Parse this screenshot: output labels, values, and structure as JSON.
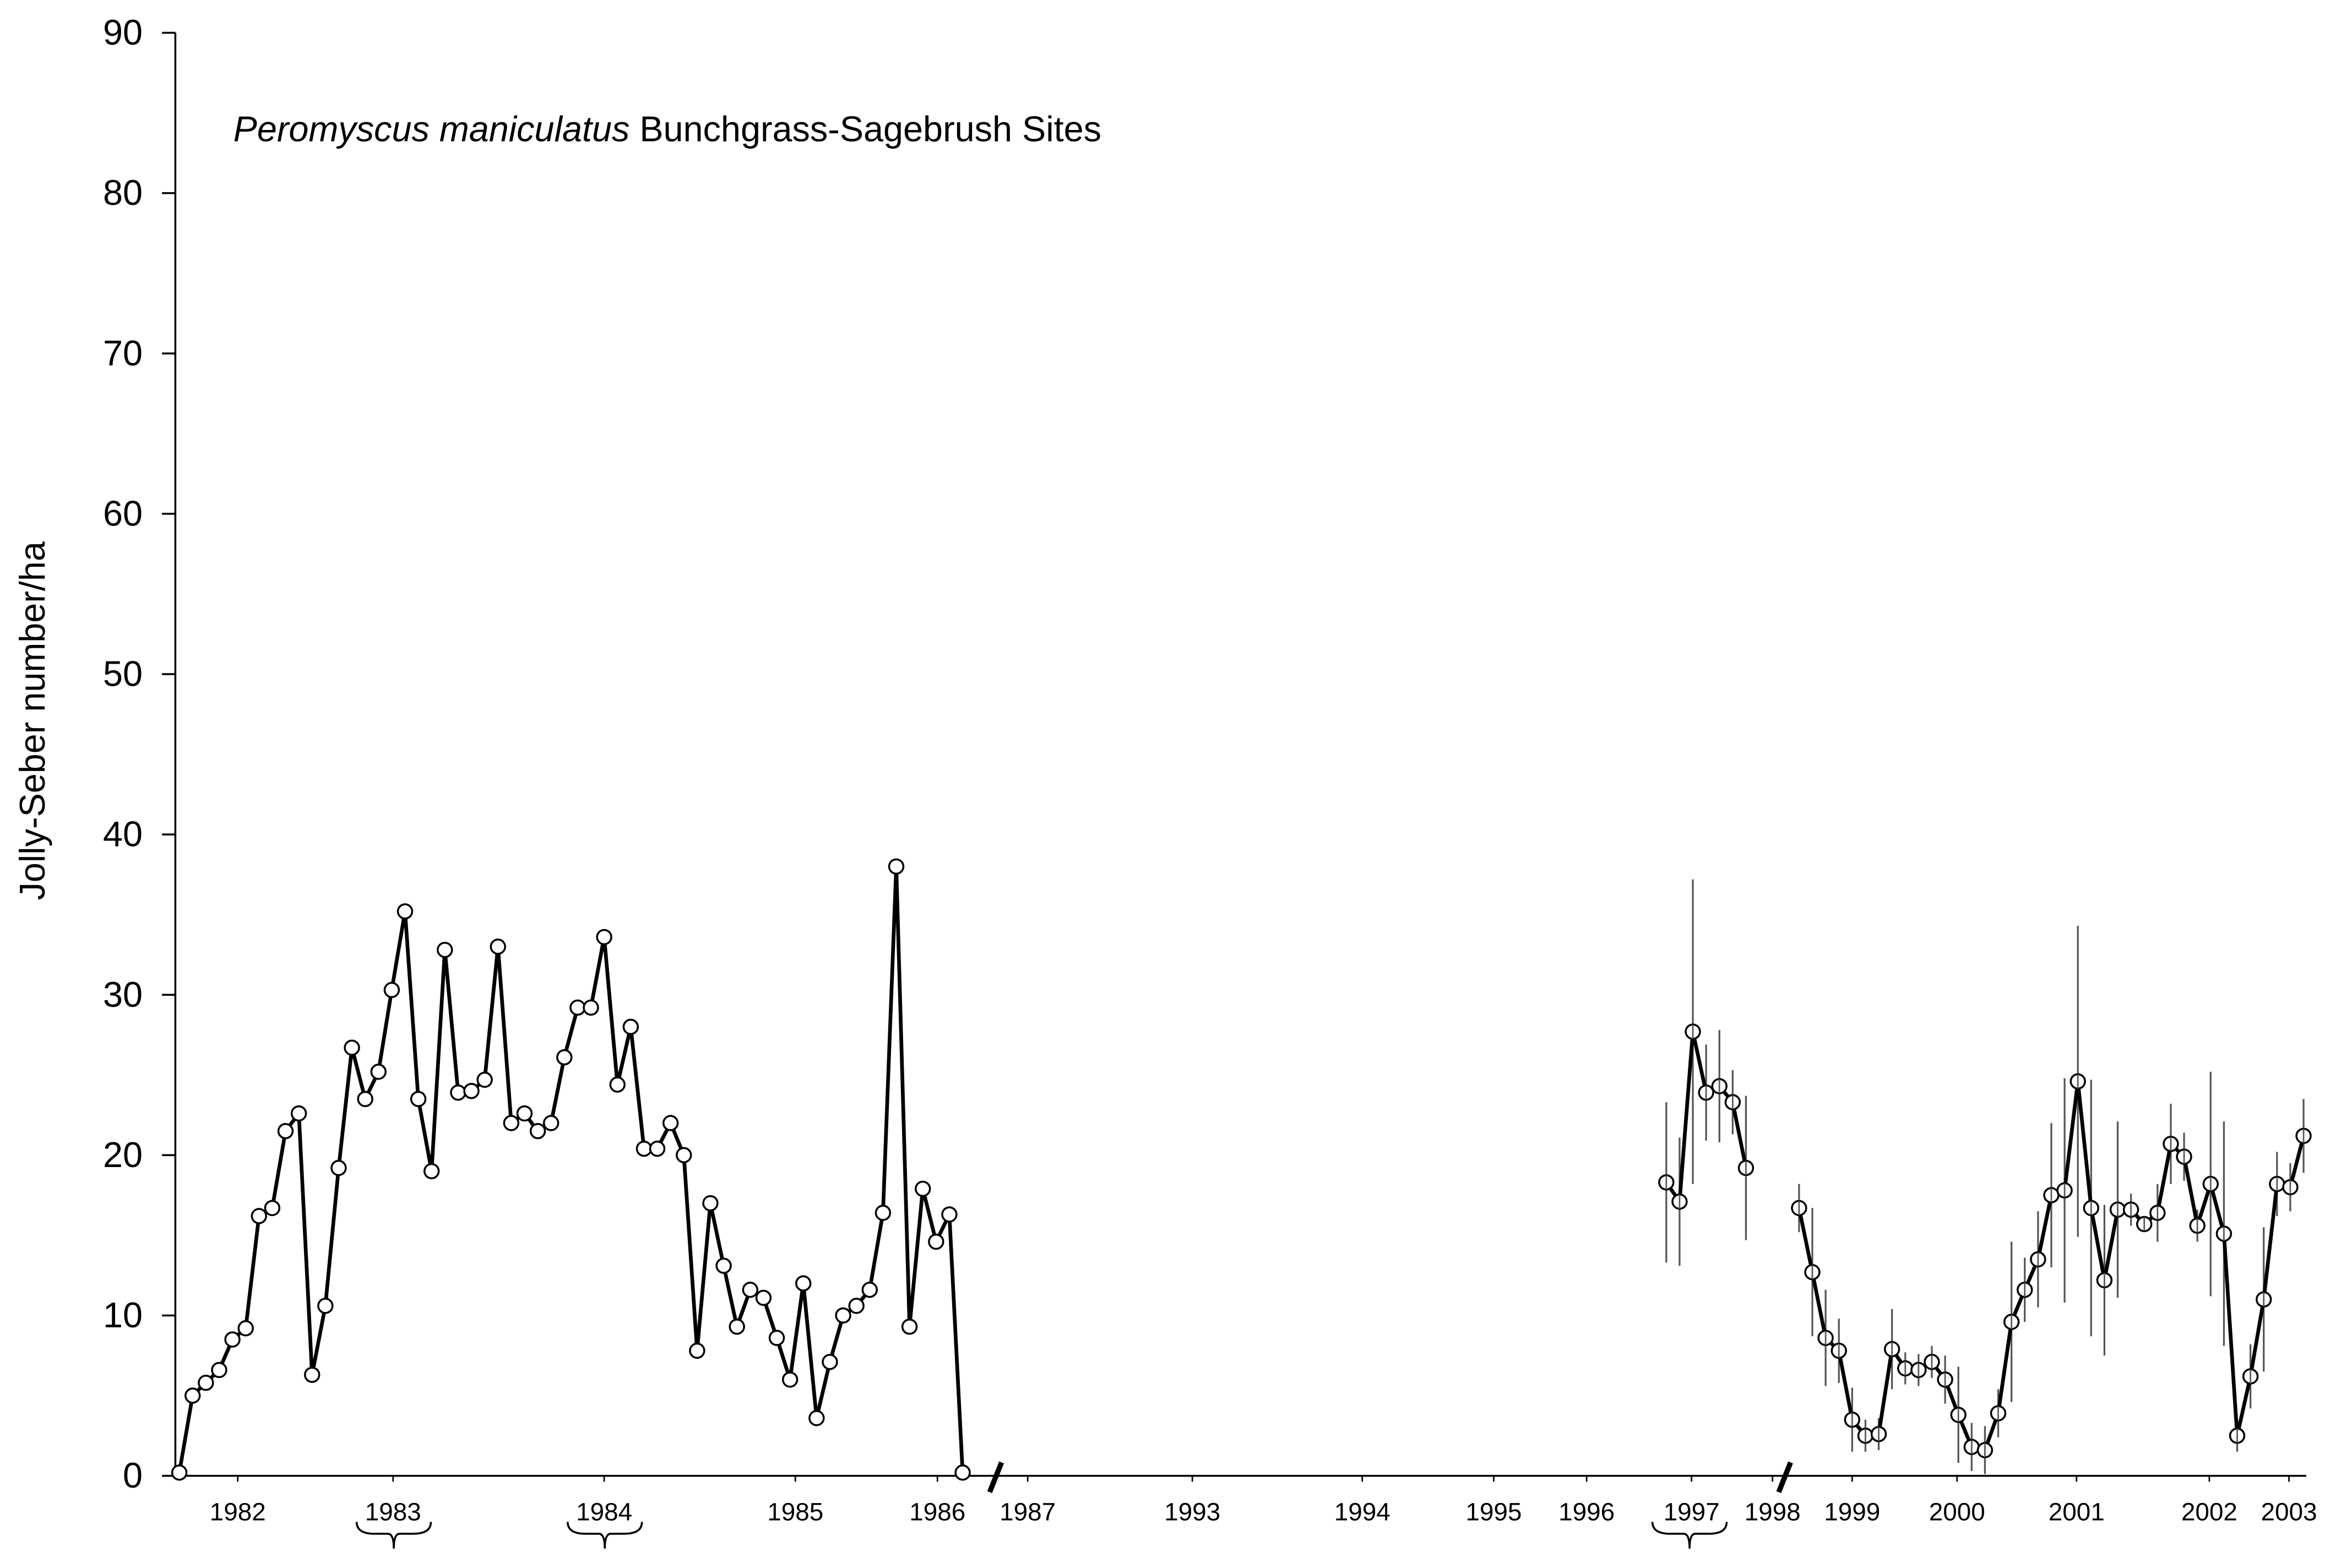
{
  "chart_data": {
    "type": "line",
    "species": "Peromyscus maniculatus",
    "title": "Bunchgrass-Sagebrush Sites",
    "ylabel": "Jolly-Seber number/ha",
    "xlim": [
      -0.3,
      160.2
    ],
    "ylim": [
      0,
      90
    ],
    "yticks": [
      0,
      10,
      20,
      30,
      40,
      50,
      60,
      70,
      80,
      90
    ],
    "xticks": [
      {
        "value": 4.4,
        "label": "1982"
      },
      {
        "value": 16.1,
        "label": "1983"
      },
      {
        "value": 32,
        "label": "1984"
      },
      {
        "value": 46.4,
        "label": "1985"
      },
      {
        "value": 57.1,
        "label": "1986"
      },
      {
        "value": 63.9,
        "label": "1987"
      },
      {
        "value": 76.3,
        "label": "1993"
      },
      {
        "value": 89.1,
        "label": "1994"
      },
      {
        "value": 99,
        "label": "1995"
      },
      {
        "value": 106,
        "label": "1996"
      },
      {
        "value": 113.9,
        "label": "1997"
      },
      {
        "value": 120,
        "label": "1998"
      },
      {
        "value": 126,
        "label": "1999"
      },
      {
        "value": 133.9,
        "label": "2000"
      },
      {
        "value": 142.9,
        "label": "2001"
      },
      {
        "value": 152.9,
        "label": "2002"
      },
      {
        "value": 158.9,
        "label": "2003"
      }
    ],
    "series": [
      {
        "color": "#000000",
        "x": [
          0,
          1,
          2,
          3,
          4,
          5,
          6,
          7,
          8,
          9,
          10,
          11,
          12,
          13,
          14,
          15,
          16,
          17,
          18,
          19,
          20,
          21,
          22,
          23,
          24,
          25,
          26,
          27,
          28,
          29,
          30,
          31,
          32,
          33,
          34,
          35,
          36,
          37,
          38,
          39,
          40,
          41,
          42,
          43,
          44,
          45,
          46,
          47,
          48,
          49,
          50,
          51,
          52,
          53,
          54,
          55,
          56,
          57,
          58,
          59
        ],
        "values": [
          0.2,
          5.0,
          5.8,
          6.6,
          8.5,
          9.2,
          16.2,
          16.7,
          21.5,
          22.6,
          6.3,
          10.6,
          19.2,
          26.7,
          23.5,
          25.2,
          30.3,
          35.2,
          23.5,
          19.0,
          32.8,
          23.9,
          24.0,
          24.7,
          33.0,
          22.0,
          22.6,
          21.5,
          22.0,
          26.1,
          29.2,
          29.2,
          33.6,
          24.4,
          28.0,
          20.4,
          20.4,
          22.0,
          20.0,
          7.8,
          17.0,
          13.1,
          9.3,
          11.6,
          11.1,
          8.6,
          6.0,
          12.0,
          3.6,
          7.1,
          10.0,
          10.6,
          11.6,
          16.4,
          38.0,
          9.3,
          17.9,
          14.6,
          16.3,
          0.2
        ]
      },
      {
        "color": "#000000",
        "x": [
          112,
          113,
          114,
          115,
          116,
          117,
          118
        ],
        "values": [
          18.3,
          17.1,
          27.7,
          23.9,
          24.3,
          23.3,
          19.2
        ],
        "errors": [
          5,
          4,
          9.5,
          3,
          3.5,
          2,
          4.5
        ]
      },
      {
        "color": "#000000",
        "x": [
          122,
          123,
          124,
          125,
          126,
          127,
          128,
          129,
          130,
          131,
          132,
          133,
          134,
          135,
          136,
          137,
          138,
          139,
          140,
          141,
          142,
          143,
          144,
          145,
          146,
          147,
          148,
          149,
          150,
          151,
          152,
          153,
          154,
          155,
          156,
          157,
          158,
          159,
          160
        ],
        "values": [
          16.7,
          12.7,
          8.6,
          7.8,
          3.5,
          2.5,
          2.6,
          7.9,
          6.7,
          6.6,
          7.1,
          6.0,
          3.8,
          1.8,
          1.6,
          3.9,
          9.6,
          11.6,
          13.5,
          17.5,
          17.8,
          24.6,
          16.7,
          12.2,
          16.6,
          16.6,
          15.7,
          16.4,
          20.7,
          19.9,
          15.6,
          18.2,
          15.1,
          2.5,
          6.2,
          11.0,
          18.2,
          18.0,
          21.2
        ],
        "errors": [
          1.5,
          4,
          3,
          2,
          2,
          1,
          1,
          2.5,
          1,
          1,
          1,
          1.5,
          3,
          1.5,
          1.5,
          1.5,
          5,
          2,
          3,
          4.5,
          7,
          9.7,
          8,
          4.7,
          5.5,
          1,
          0.5,
          1.8,
          2.5,
          1.5,
          1,
          7,
          7,
          1,
          2,
          4.5,
          2,
          1.5,
          2.3
        ]
      }
    ]
  }
}
